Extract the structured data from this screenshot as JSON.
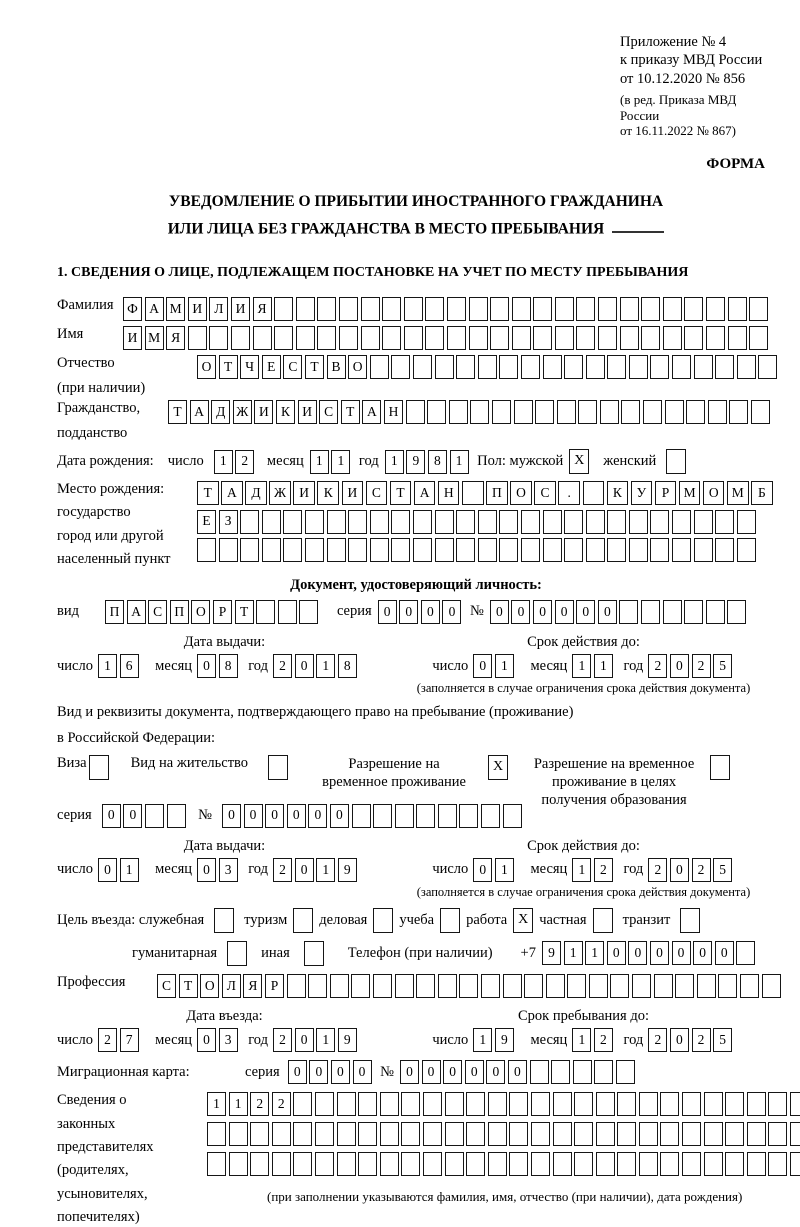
{
  "header": {
    "appendix_line1": "Приложение № 4",
    "appendix_line2": "к приказу МВД России",
    "appendix_line3": "от 10.12.2020 № 856",
    "edition_line1": "(в ред. Приказа МВД России",
    "edition_line2": "от 16.11.2022 № 867)",
    "form_label": "ФОРМА"
  },
  "title": {
    "line1": "УВЕДОМЛЕНИЕ О ПРИБЫТИИ ИНОСТРАННОГО ГРАЖДАНИНА",
    "line2": "ИЛИ ЛИЦА БЕЗ ГРАЖДАНСТВА В МЕСТО ПРЕБЫВАНИЯ"
  },
  "section1": {
    "heading": "1. СВЕДЕНИЯ О ЛИЦЕ, ПОДЛЕЖАЩЕМ ПОСТАНОВКЕ НА УЧЕТ ПО МЕСТУ ПРЕБЫВАНИЯ"
  },
  "labels": {
    "surname": "Фамилия",
    "given_name": "Имя",
    "patronymic1": "Отчество",
    "patronymic2": "(при наличии)",
    "citizenship1": "Гражданство,",
    "citizenship2": "подданство",
    "birth_date": "Дата рождения:",
    "day": "число",
    "month": "месяц",
    "year": "год",
    "sex": "Пол: мужской",
    "female": "женский",
    "birthplace1": "Место рождения:",
    "birthplace2": "государство",
    "birthplace3": "город или другой",
    "birthplace4": "населенный пункт",
    "identity_heading": "Документ, удостоверяющий личность:",
    "doc_type": "вид",
    "series": "серия",
    "number": "№",
    "issue_date": "Дата выдачи:",
    "valid_until": "Срок действия до:",
    "validity_note": "(заполняется в случае ограничения срока действия документа)",
    "residence1": "Вид и реквизиты документа, подтверждающего право на пребывание (проживание)",
    "residence2": "в Российской Федерации:",
    "visa": "Виза",
    "residence_permit": "Вид на жительство",
    "temp_residence": "Разрешение на временное проживание",
    "temp_residence_edu": "Разрешение на временное проживание в целях получения образования",
    "entry_purpose": "Цель въезда: служебная",
    "p_tourism": "туризм",
    "p_business": "деловая",
    "p_study": "учеба",
    "p_work": "работа",
    "p_private": "частная",
    "p_transit": "транзит",
    "p_humanitarian": "гуманитарная",
    "p_other": "иная",
    "phone_label": "Телефон (при наличии)",
    "phone_prefix": "+7",
    "profession": "Профессия",
    "entry_date": "Дата въезда:",
    "stay_until": "Срок пребывания до:",
    "migration_card": "Миграционная карта:",
    "rep1": "Сведения о",
    "rep2": "законных",
    "rep3": "представителях",
    "rep4": "(родителях,",
    "rep5": "усыновителях,",
    "rep6": "попечителях)",
    "rep_note": "(при заполнении указываются фамилия, имя, отчество (при наличии), дата рождения)"
  },
  "fields": {
    "surname": {
      "count": 30,
      "value": "ФАМИЛИЯ"
    },
    "given_name": {
      "count": 30,
      "value": "ИМЯ"
    },
    "patronymic": {
      "count": 27,
      "value": "ОТЧЕСТВО"
    },
    "citizenship": {
      "count": 28,
      "value": "ТАДЖИКИСТАН"
    },
    "birth_day": {
      "count": 2,
      "value": "12"
    },
    "birth_month": {
      "count": 2,
      "value": "11"
    },
    "birth_year": {
      "count": 4,
      "value": "1981"
    },
    "sex_male": "X",
    "sex_female": "",
    "birthplace_row1": {
      "count": 24,
      "value": "ТАДЖИКИСТАН ПОС. КУРМОМБ"
    },
    "birthplace_row2": {
      "count": 26,
      "value": "ЕЗ"
    },
    "birthplace_row3": {
      "count": 26,
      "value": ""
    },
    "doc_type": {
      "count": 10,
      "value": "ПАСПОРТ"
    },
    "doc_series": {
      "count": 4,
      "value": "0000"
    },
    "doc_number": {
      "count": 12,
      "value": "000000"
    },
    "doc_issue_day": {
      "count": 2,
      "value": "16"
    },
    "doc_issue_month": {
      "count": 2,
      "value": "08"
    },
    "doc_issue_year": {
      "count": 4,
      "value": "2018"
    },
    "doc_valid_day": {
      "count": 2,
      "value": "01"
    },
    "doc_valid_month": {
      "count": 2,
      "value": "11"
    },
    "doc_valid_year": {
      "count": 4,
      "value": "2025"
    },
    "visa_cb": "",
    "residence_permit_cb": "",
    "temp_residence_cb": "X",
    "temp_residence_edu_cb": "",
    "permit_series": {
      "count": 4,
      "value": "00"
    },
    "permit_number": {
      "count": 14,
      "value": "000000"
    },
    "permit_issue_day": {
      "count": 2,
      "value": "01"
    },
    "permit_issue_month": {
      "count": 2,
      "value": "03"
    },
    "permit_issue_year": {
      "count": 4,
      "value": "2019"
    },
    "permit_valid_day": {
      "count": 2,
      "value": "01"
    },
    "permit_valid_month": {
      "count": 2,
      "value": "12"
    },
    "permit_valid_year": {
      "count": 4,
      "value": "2025"
    },
    "purpose_official": "",
    "purpose_tourism": "",
    "purpose_business": "",
    "purpose_study": "",
    "purpose_work": "X",
    "purpose_private": "",
    "purpose_transit": "",
    "purpose_humanitarian": "",
    "purpose_other": "",
    "phone": {
      "count": 10,
      "value": "911000000"
    },
    "profession": {
      "count": 29,
      "value": "СТОЛЯР"
    },
    "entry_day": {
      "count": 2,
      "value": "27"
    },
    "entry_month": {
      "count": 2,
      "value": "03"
    },
    "entry_year": {
      "count": 4,
      "value": "2019"
    },
    "stay_day": {
      "count": 2,
      "value": "19"
    },
    "stay_month": {
      "count": 2,
      "value": "12"
    },
    "stay_year": {
      "count": 4,
      "value": "2025"
    },
    "mig_series": {
      "count": 4,
      "value": "0000"
    },
    "mig_number": {
      "count": 11,
      "value": "000000"
    },
    "rep_row1": {
      "count": 30,
      "value": "1122"
    },
    "rep_row2": {
      "count": 30,
      "value": ""
    },
    "rep_row3": {
      "count": 30,
      "value": ""
    }
  }
}
